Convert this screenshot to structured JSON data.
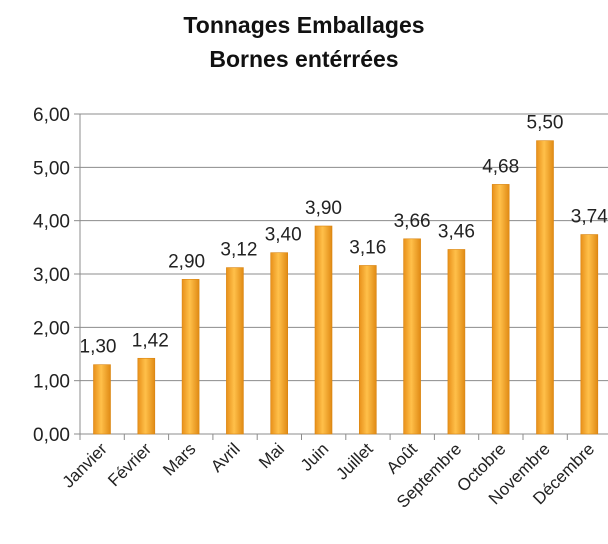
{
  "chart_data": {
    "type": "bar",
    "title": "Tonnages Emballages",
    "subtitle": "Bornes entérrées",
    "categories": [
      "Janvier",
      "Février",
      "Mars",
      "Avril",
      "Mai",
      "Juin",
      "Juillet",
      "Août",
      "Septembre",
      "Octobre",
      "Novembre",
      "Décembre"
    ],
    "values": [
      1.3,
      1.42,
      2.9,
      3.12,
      3.4,
      3.9,
      3.16,
      3.66,
      3.46,
      4.68,
      5.5,
      3.74
    ],
    "value_labels": [
      "1,30",
      "1,42",
      "2,90",
      "3,12",
      "3,40",
      "3,90",
      "3,16",
      "3,66",
      "3,46",
      "4,68",
      "5,50",
      "3,74"
    ],
    "ytick_labels": [
      "0,00",
      "1,00",
      "2,00",
      "3,00",
      "4,00",
      "5,00",
      "6,00"
    ],
    "ylim": [
      0,
      6
    ],
    "xlabel": "",
    "ylabel": "",
    "grid": true,
    "legend": "none",
    "bar_color": "#F5A623"
  }
}
